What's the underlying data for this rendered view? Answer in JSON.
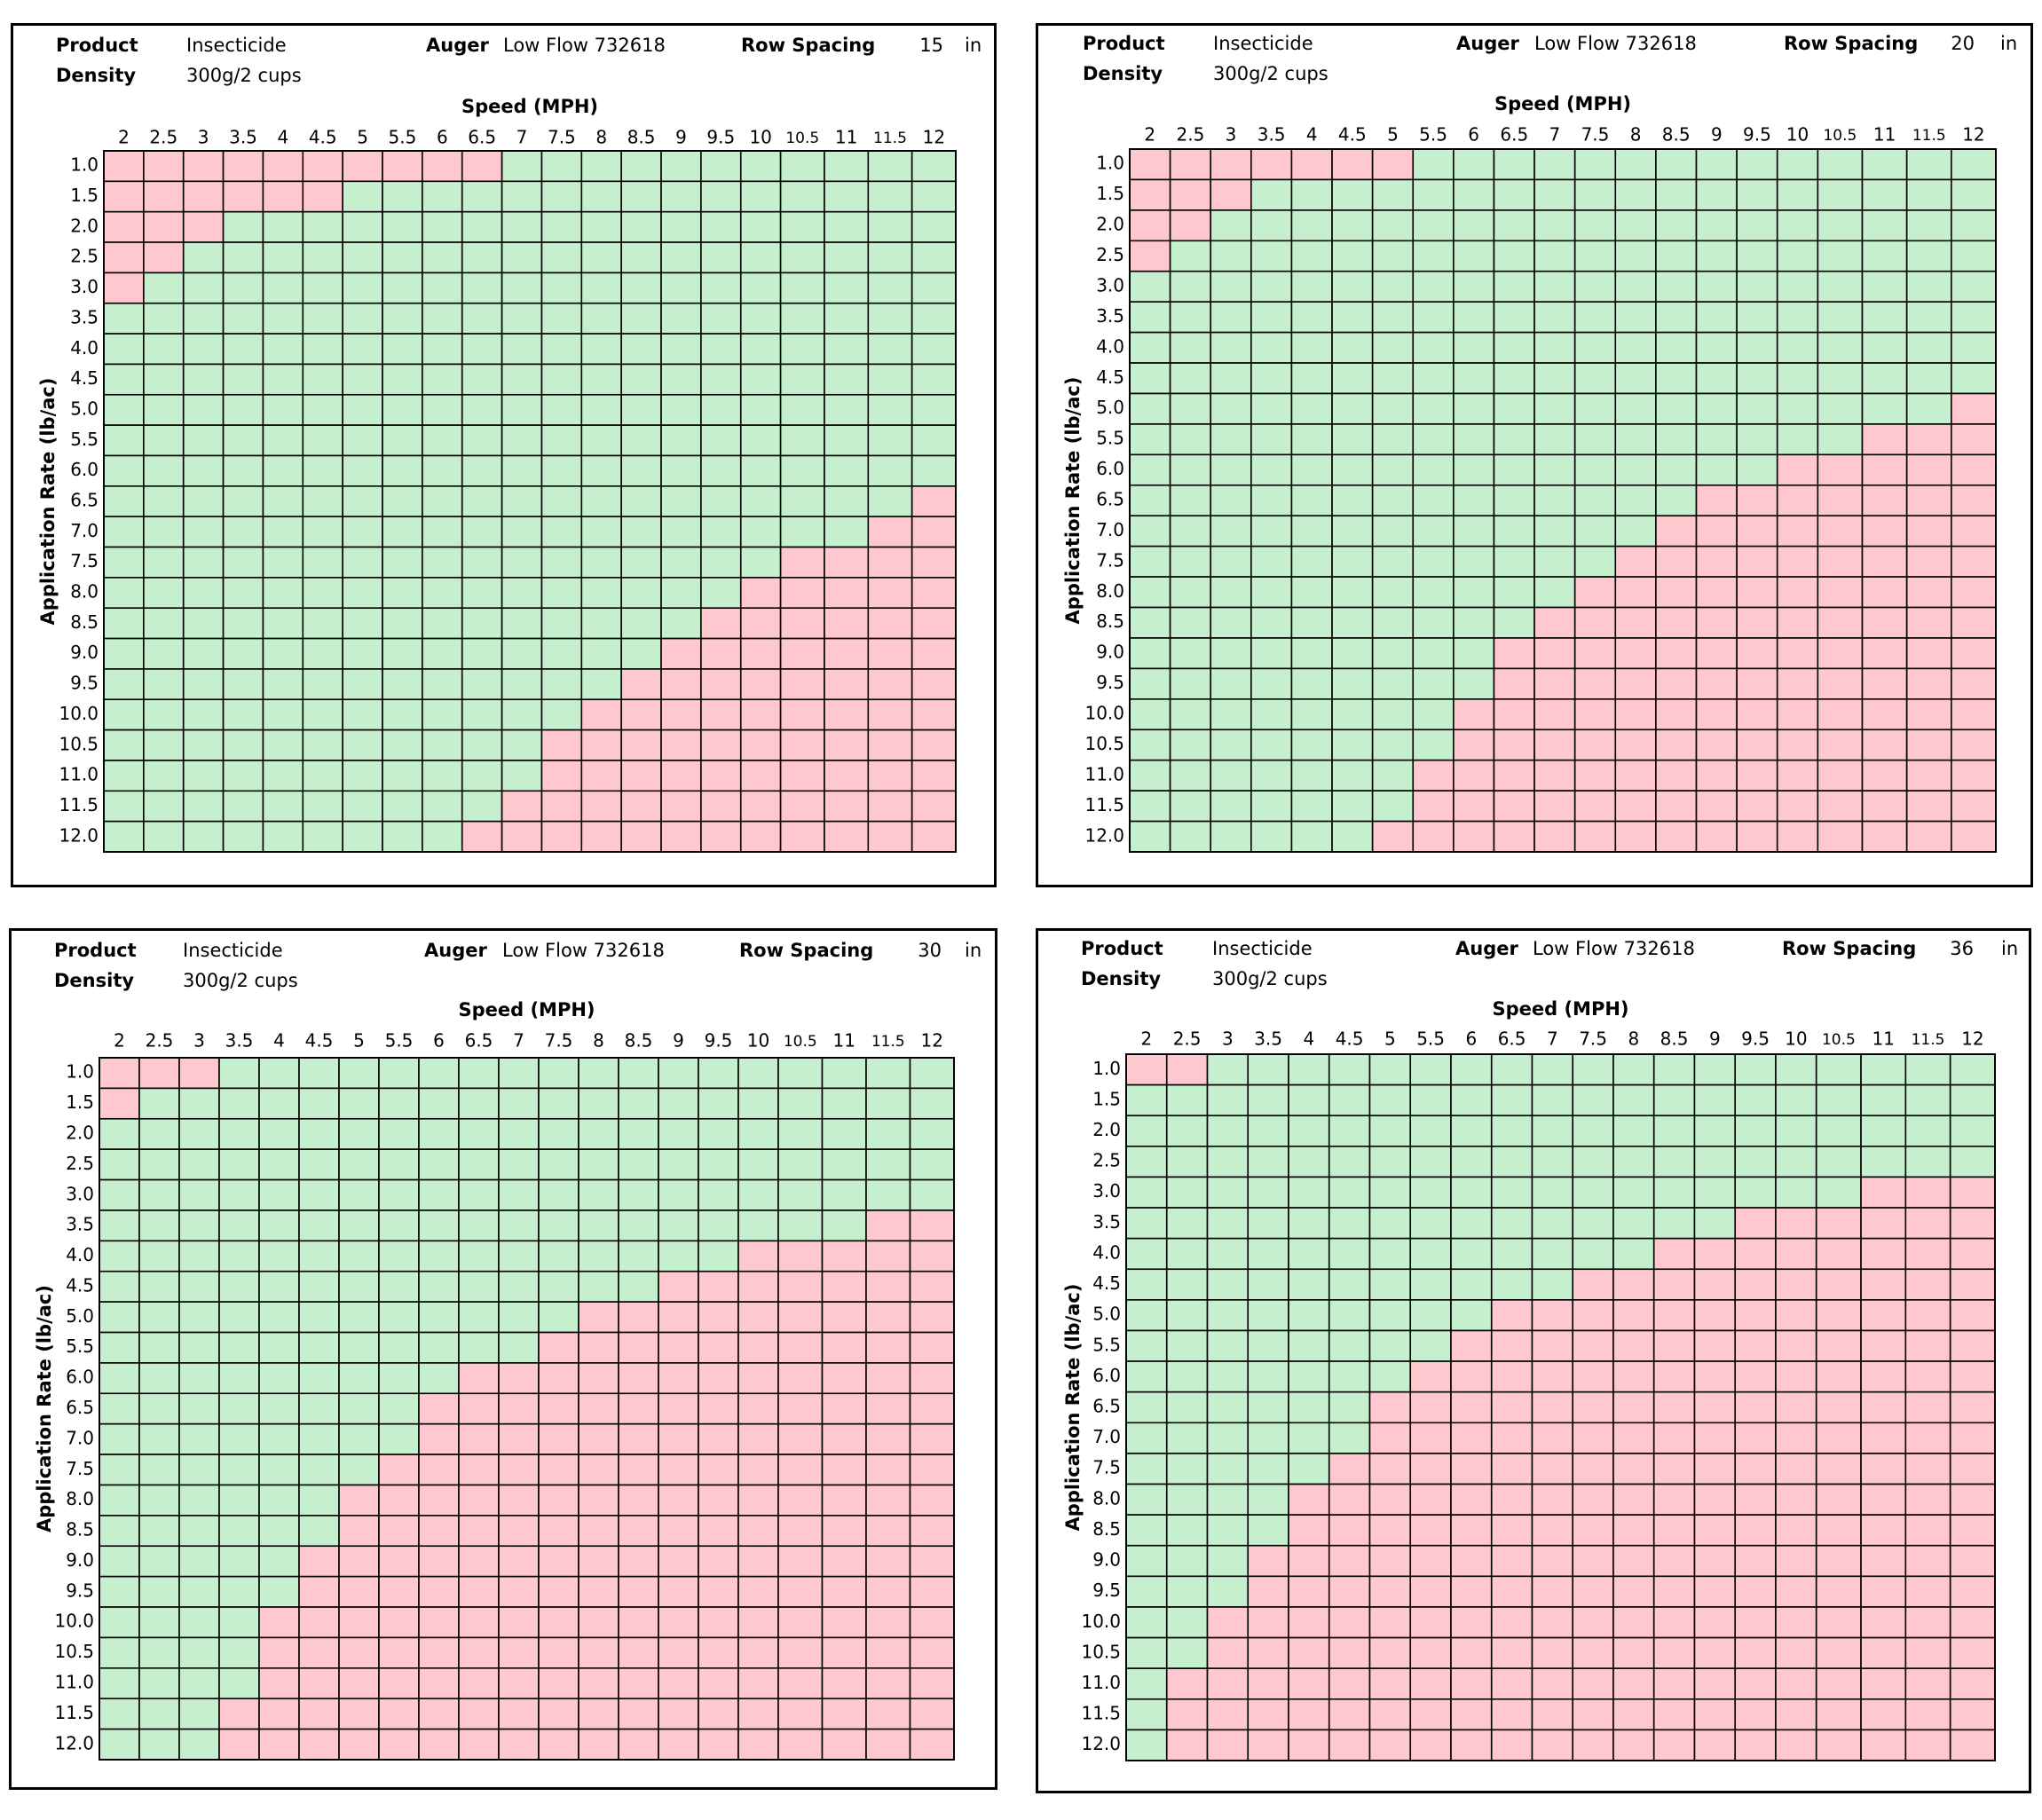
{
  "colors": {
    "ok": "#c6efce",
    "bad": "#ffc7ce",
    "grid": "#000000"
  },
  "labels": {
    "product_label": "Product",
    "density_label": "Density",
    "auger_label": "Auger",
    "row_spacing_label": "Row Spacing",
    "unit": "in",
    "xlabel": "Speed (MPH)",
    "ylabel": "Application Rate (lb/ac)"
  },
  "chart_data": [
    {
      "type": "heatmap",
      "product": "Insecticide",
      "density": "300g/2 cups",
      "auger": "Low Flow 732618",
      "row_spacing": "15",
      "xlabel": "Speed (MPH)",
      "ylabel": "Application Rate (lb/ac)",
      "x": [
        "2",
        "2.5",
        "3",
        "3.5",
        "4",
        "4.5",
        "5",
        "5.5",
        "6",
        "6.5",
        "7",
        "7.5",
        "8",
        "8.5",
        "9",
        "9.5",
        "10",
        "10.5",
        "11",
        "11.5",
        "12"
      ],
      "y": [
        "1.0",
        "1.5",
        "2.0",
        "2.5",
        "3.0",
        "3.5",
        "4.0",
        "4.5",
        "5.0",
        "5.5",
        "6.0",
        "6.5",
        "7.0",
        "7.5",
        "8.0",
        "8.5",
        "9.0",
        "9.5",
        "10.0",
        "10.5",
        "11.0",
        "11.5",
        "12.0"
      ],
      "low_limit_red_cols_per_row": [
        10,
        6,
        3,
        2,
        1,
        0,
        0,
        0,
        0,
        0,
        0,
        0,
        0,
        0,
        0,
        0,
        0,
        0,
        0,
        0,
        0,
        0,
        0
      ],
      "high_limit_first_red_col_per_row": [
        21,
        21,
        21,
        21,
        21,
        21,
        21,
        21,
        21,
        21,
        21,
        20,
        19,
        17,
        16,
        15,
        14,
        13,
        12,
        11,
        11,
        10,
        9
      ]
    },
    {
      "type": "heatmap",
      "product": "Insecticide",
      "density": "300g/2 cups",
      "auger": "Low Flow 732618",
      "row_spacing": "20",
      "xlabel": "Speed (MPH)",
      "ylabel": "Application Rate (lb/ac)",
      "x": [
        "2",
        "2.5",
        "3",
        "3.5",
        "4",
        "4.5",
        "5",
        "5.5",
        "6",
        "6.5",
        "7",
        "7.5",
        "8",
        "8.5",
        "9",
        "9.5",
        "10",
        "10.5",
        "11",
        "11.5",
        "12"
      ],
      "y": [
        "1.0",
        "1.5",
        "2.0",
        "2.5",
        "3.0",
        "3.5",
        "4.0",
        "4.5",
        "5.0",
        "5.5",
        "6.0",
        "6.5",
        "7.0",
        "7.5",
        "8.0",
        "8.5",
        "9.0",
        "9.5",
        "10.0",
        "10.5",
        "11.0",
        "11.5",
        "12.0"
      ],
      "low_limit_red_cols_per_row": [
        7,
        3,
        2,
        1,
        0,
        0,
        0,
        0,
        0,
        0,
        0,
        0,
        0,
        0,
        0,
        0,
        0,
        0,
        0,
        0,
        0,
        0,
        0
      ],
      "high_limit_first_red_col_per_row": [
        21,
        21,
        21,
        21,
        21,
        21,
        21,
        21,
        20,
        18,
        16,
        14,
        13,
        12,
        11,
        10,
        9,
        9,
        8,
        8,
        7,
        7,
        6
      ]
    },
    {
      "type": "heatmap",
      "product": "Insecticide",
      "density": "300g/2 cups",
      "auger": "Low Flow 732618",
      "row_spacing": "30",
      "xlabel": "Speed (MPH)",
      "ylabel": "Application Rate (lb/ac)",
      "x": [
        "2",
        "2.5",
        "3",
        "3.5",
        "4",
        "4.5",
        "5",
        "5.5",
        "6",
        "6.5",
        "7",
        "7.5",
        "8",
        "8.5",
        "9",
        "9.5",
        "10",
        "10.5",
        "11",
        "11.5",
        "12"
      ],
      "y": [
        "1.0",
        "1.5",
        "2.0",
        "2.5",
        "3.0",
        "3.5",
        "4.0",
        "4.5",
        "5.0",
        "5.5",
        "6.0",
        "6.5",
        "7.0",
        "7.5",
        "8.0",
        "8.5",
        "9.0",
        "9.5",
        "10.0",
        "10.5",
        "11.0",
        "11.5",
        "12.0"
      ],
      "low_limit_red_cols_per_row": [
        3,
        1,
        0,
        0,
        0,
        0,
        0,
        0,
        0,
        0,
        0,
        0,
        0,
        0,
        0,
        0,
        0,
        0,
        0,
        0,
        0,
        0,
        0
      ],
      "high_limit_first_red_col_per_row": [
        21,
        21,
        21,
        21,
        21,
        19,
        16,
        14,
        12,
        11,
        9,
        8,
        8,
        7,
        6,
        6,
        5,
        5,
        4,
        4,
        4,
        3,
        3
      ]
    },
    {
      "type": "heatmap",
      "product": "Insecticide",
      "density": "300g/2 cups",
      "auger": "Low Flow 732618",
      "row_spacing": "36",
      "xlabel": "Speed (MPH)",
      "ylabel": "Application Rate (lb/ac)",
      "x": [
        "2",
        "2.5",
        "3",
        "3.5",
        "4",
        "4.5",
        "5",
        "5.5",
        "6",
        "6.5",
        "7",
        "7.5",
        "8",
        "8.5",
        "9",
        "9.5",
        "10",
        "10.5",
        "11",
        "11.5",
        "12"
      ],
      "y": [
        "1.0",
        "1.5",
        "2.0",
        "2.5",
        "3.0",
        "3.5",
        "4.0",
        "4.5",
        "5.0",
        "5.5",
        "6.0",
        "6.5",
        "7.0",
        "7.5",
        "8.0",
        "8.5",
        "9.0",
        "9.5",
        "10.0",
        "10.5",
        "11.0",
        "11.5",
        "12.0"
      ],
      "low_limit_red_cols_per_row": [
        2,
        0,
        0,
        0,
        0,
        0,
        0,
        0,
        0,
        0,
        0,
        0,
        0,
        0,
        0,
        0,
        0,
        0,
        0,
        0,
        0,
        0,
        0
      ],
      "high_limit_first_red_col_per_row": [
        21,
        21,
        21,
        21,
        18,
        15,
        13,
        11,
        9,
        8,
        7,
        6,
        6,
        5,
        4,
        4,
        3,
        3,
        2,
        2,
        1,
        1,
        1
      ]
    }
  ]
}
